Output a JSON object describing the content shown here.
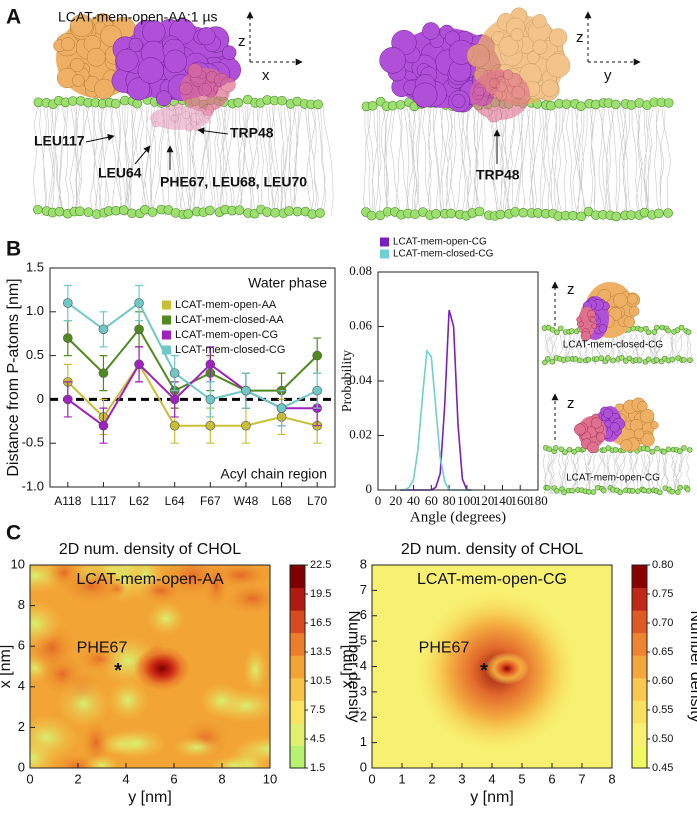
{
  "panel_labels": [
    "A",
    "B",
    "C"
  ],
  "panel_a": {
    "left": {
      "title": "LCAT-mem-open-AA:1 µs",
      "axes": [
        "z",
        "x"
      ],
      "labels": [
        "LEU117",
        "LEU64",
        "PHE67, LEU68, LEU70",
        "TRP48"
      ]
    },
    "right": {
      "axes": [
        "z",
        "y"
      ],
      "labels": [
        "TRP48"
      ]
    }
  },
  "panel_b_images": [
    {
      "axis": "z",
      "label": "LCAT-mem-closed-CG"
    },
    {
      "axis": "z",
      "label": "LCAT-mem-open-CG"
    }
  ],
  "chart_data": [
    {
      "type": "line",
      "ylabel": "Distance from P-atoms [nm]",
      "annotations": [
        "Water phase",
        "Acyl chain region"
      ],
      "categories": [
        "A118",
        "L117",
        "L62",
        "L64",
        "F67",
        "W48",
        "L68",
        "L70"
      ],
      "series": [
        {
          "name": "LCAT-mem-open-AA",
          "color": "#c8c032",
          "values": [
            0.2,
            -0.2,
            0.4,
            -0.3,
            -0.3,
            -0.3,
            -0.2,
            -0.3
          ],
          "errors": [
            0.2,
            0.2,
            0.2,
            0.2,
            0.2,
            0.2,
            0.2,
            0.2
          ]
        },
        {
          "name": "LCAT-mem-closed-AA",
          "color": "#4e8a1e",
          "values": [
            0.7,
            0.3,
            0.8,
            0.1,
            0.3,
            0.1,
            0.1,
            0.5
          ],
          "errors": [
            0.2,
            0.2,
            0.2,
            0.2,
            0.2,
            0.2,
            0.2,
            0.2
          ]
        },
        {
          "name": "LCAT-mem-open-CG",
          "color": "#a020c0",
          "values": [
            0,
            -0.3,
            0.4,
            0,
            0.4,
            0.1,
            -0.1,
            -0.1
          ],
          "errors": [
            0.2,
            0.2,
            0.2,
            0.2,
            0.2,
            0.2,
            0.2,
            0.2
          ]
        },
        {
          "name": "LCAT-mem-closed-CG",
          "color": "#6ec8c8",
          "values": [
            1.1,
            0.8,
            1.1,
            0.3,
            0,
            0.1,
            -0.1,
            0.1
          ],
          "errors": [
            0.2,
            0.2,
            0.2,
            0.2,
            0.2,
            0.2,
            0.2,
            0.2
          ]
        }
      ],
      "hline": 0,
      "ylim": [
        -1,
        1.5
      ],
      "yticks": [
        {
          "value": -1,
          "label": "-1.0"
        },
        -0.5,
        0,
        0.5,
        {
          "value": 1,
          "label": "1.0"
        },
        1.5
      ]
    },
    {
      "type": "line",
      "xlabel": "Angle (degrees)",
      "ylabel": "Probability",
      "x": [
        25,
        30,
        35,
        40,
        45,
        50,
        55,
        60,
        65,
        70,
        75,
        80,
        85,
        90,
        95,
        100,
        105
      ],
      "series": [
        {
          "name": "LCAT-mem-open-CG",
          "color": "#7a1fc0",
          "values": [
            0,
            0,
            0,
            0,
            0,
            0,
            0,
            0,
            0.001,
            0.006,
            0.031,
            0.066,
            0.06,
            0.024,
            0.004,
            0,
            0
          ]
        },
        {
          "name": "LCAT-mem-closed-CG",
          "color": "#6ed0d0",
          "values": [
            0,
            0,
            0.001,
            0.004,
            0.015,
            0.034,
            0.051,
            0.049,
            0.03,
            0.012,
            0.003,
            0,
            0,
            0,
            0,
            0,
            0
          ]
        }
      ],
      "xlim": [
        0,
        180
      ],
      "xticks": [
        0,
        20,
        40,
        60,
        80,
        100,
        120,
        140,
        160,
        180
      ],
      "ylim": [
        0,
        0.08
      ],
      "yticks": [
        0,
        0.02,
        0.04,
        0.06,
        0.08
      ]
    },
    {
      "type": "heatmap",
      "title": "2D num. density of CHOL",
      "label": "LCAT-mem-open-AA",
      "annotation": "PHE67",
      "marker": "*",
      "xlabel": "y [nm]",
      "ylabel": "x [nm]",
      "xlim": [
        0,
        10
      ],
      "xticks": [
        0,
        2,
        4,
        6,
        8,
        10
      ],
      "ylim": [
        0,
        10
      ],
      "yticks": [
        0,
        2,
        4,
        6,
        8,
        10
      ],
      "colorbar": {
        "label": "Number density",
        "lim": [
          1.5,
          22.5
        ],
        "ticks": [
          1.5,
          4.5,
          7.5,
          10.5,
          13.5,
          16.5,
          19.5,
          22.5
        ],
        "colors": [
          "#b8f070",
          "#e2f070",
          "#f8e460",
          "#f8c448",
          "#f2a434",
          "#ea7e2a",
          "#d84a20",
          "#b01a10",
          "#800000"
        ]
      }
    },
    {
      "type": "heatmap",
      "title": "2D num. density of CHOL",
      "label": "LCAT-mem-open-CG",
      "annotation": "PHE67",
      "marker": "*",
      "xlabel": "y [nm]",
      "ylabel": "x [nm]",
      "xlim": [
        0,
        8
      ],
      "xticks": [
        0,
        1,
        2,
        3,
        4,
        5,
        6,
        7,
        8
      ],
      "ylim": [
        0,
        8
      ],
      "yticks": [
        0,
        1,
        2,
        3,
        4,
        5,
        6,
        7,
        8
      ],
      "colorbar": {
        "label": "Number density",
        "lim": [
          0.45,
          0.8
        ],
        "ticks": [
          0.45,
          {
            "value": 0.5,
            "label": "0.50"
          },
          0.55,
          {
            "value": 0.6,
            "label": "0.60"
          },
          0.65,
          {
            "value": 0.7,
            "label": "0.70"
          },
          0.75,
          {
            "value": 0.8,
            "label": "0.80"
          }
        ],
        "colors": [
          "#f0f860",
          "#f8f070",
          "#f8e060",
          "#f8c850",
          "#f4a83c",
          "#ee8430",
          "#e05a24",
          "#c02818",
          "#8a0000"
        ]
      }
    }
  ]
}
